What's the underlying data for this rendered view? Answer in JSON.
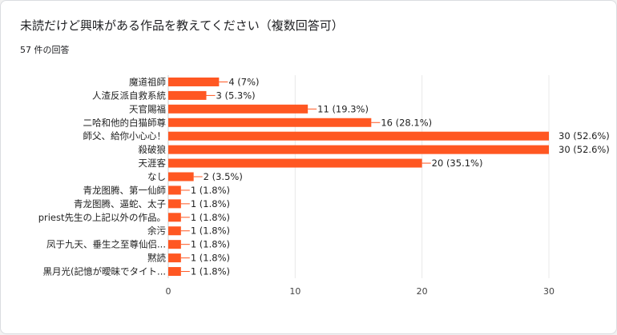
{
  "title": "未読だけど興味がある作品を教えてください（複数回答可）",
  "response_count": "57 件の回答",
  "colors": {
    "bar": "#ff5722",
    "grid": "#e8e8e8",
    "leader": "#ff5722"
  },
  "chart_data": {
    "type": "bar",
    "orientation": "horizontal",
    "title": "未読だけど興味がある作品を教えてください（複数回答可）",
    "categories": [
      "魔道祖師",
      "人渣反派自救系統",
      "天官賜福",
      "二哈和他的白猫師尊",
      "師父、給你小心心！",
      "殺破狼",
      "天涯客",
      "なし",
      "青龙图腾、第一仙師",
      "青龙图腾、逼蛇、太子",
      "priest先生の上記以外の作品。",
      "余污",
      "凤于九天、垂生之至尊仙侣...",
      "黙読",
      "黒月光(記憶が曖昧でタイト..."
    ],
    "values": [
      4,
      3,
      11,
      16,
      30,
      30,
      20,
      2,
      1,
      1,
      1,
      1,
      1,
      1,
      1
    ],
    "value_labels": [
      "4 (7%)",
      "3 (5.3%)",
      "11 (19.3%)",
      "16 (28.1%)",
      "30 (52.6%)",
      "30 (52.6%)",
      "20 (35.1%)",
      "2 (3.5%)",
      "1 (1.8%)",
      "1 (1.8%)",
      "1 (1.8%)",
      "1 (1.8%)",
      "1 (1.8%)",
      "1 (1.8%)",
      "1 (1.8%)"
    ],
    "xlim": [
      0,
      30
    ],
    "xticks": [
      0,
      10,
      20,
      30
    ],
    "grid": true,
    "legend": "none"
  }
}
